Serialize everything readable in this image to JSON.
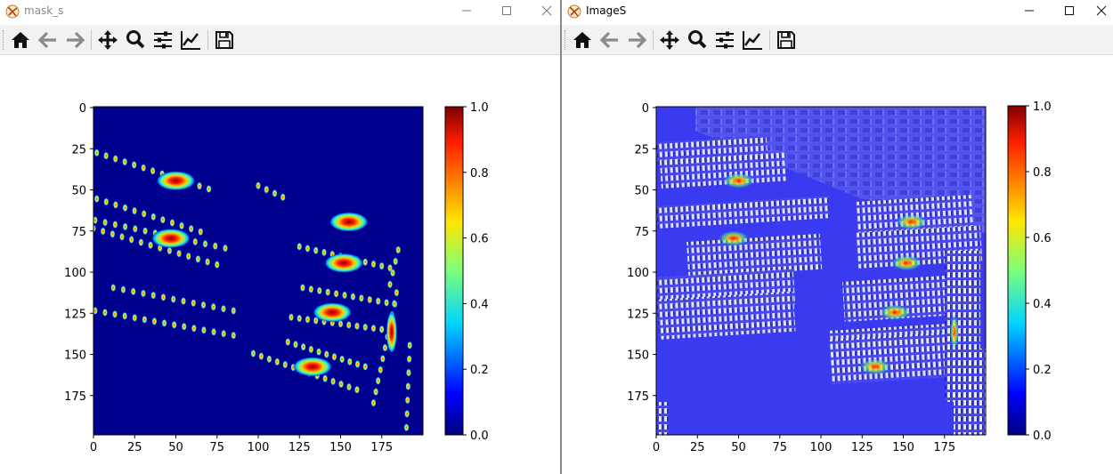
{
  "colors": {
    "titlebar_bg": "#ffffff",
    "toolbar_bg": "#f2f2f2",
    "divider": "#8a8a8a",
    "inactive_title": "#8a8a8a",
    "active_title": "#000000",
    "mask_background": "#00008f",
    "imagery_tint": "#3a3af0"
  },
  "windows": [
    {
      "title": "mask_s",
      "active": false,
      "controls": [
        "minimize",
        "maximize",
        "close"
      ],
      "toolbar": [
        "home-icon",
        "back-arrow-icon",
        "forward-arrow-icon",
        "pan-move-icon",
        "zoom-magnifier-icon",
        "configure-subplots-icon",
        "edit-axis-curve-icon",
        "save-floppy-icon"
      ],
      "x_ticks": [
        "0",
        "25",
        "50",
        "75",
        "100",
        "125",
        "150",
        "175"
      ],
      "y_ticks": [
        "0",
        "25",
        "50",
        "75",
        "100",
        "125",
        "150",
        "175"
      ],
      "colorbar_ticks": [
        "0.0",
        "0.2",
        "0.4",
        "0.6",
        "0.8",
        "1.0"
      ]
    },
    {
      "title": "ImageS",
      "active": true,
      "controls": [
        "minimize",
        "maximize",
        "close"
      ],
      "toolbar": [
        "home-icon",
        "back-arrow-icon",
        "forward-arrow-icon",
        "pan-move-icon",
        "zoom-magnifier-icon",
        "configure-subplots-icon",
        "edit-axis-curve-icon",
        "save-floppy-icon"
      ],
      "x_ticks": [
        "0",
        "25",
        "50",
        "75",
        "100",
        "125",
        "150",
        "175"
      ],
      "y_ticks": [
        "0",
        "25",
        "50",
        "75",
        "100",
        "125",
        "150",
        "175"
      ],
      "colorbar_ticks": [
        "0.0",
        "0.2",
        "0.4",
        "0.6",
        "0.8",
        "1.0"
      ]
    }
  ],
  "chart_data": [
    {
      "type": "heatmap",
      "colormap": "jet",
      "xlim": [
        0,
        199
      ],
      "ylim": [
        199,
        0
      ],
      "vmin": 0.0,
      "vmax": 1.0,
      "notes": "density mask: small car blobs along parking rows with a few bright red hotspots",
      "hotspots": [
        {
          "x": 50,
          "y": 45,
          "value": 1.0
        },
        {
          "x": 47,
          "y": 80,
          "value": 1.0
        },
        {
          "x": 155,
          "y": 70,
          "value": 0.95
        },
        {
          "x": 152,
          "y": 95,
          "value": 1.0
        },
        {
          "x": 145,
          "y": 125,
          "value": 1.0
        },
        {
          "x": 133,
          "y": 158,
          "value": 1.0
        },
        {
          "x": 181,
          "y": 137,
          "value": 0.95
        }
      ]
    },
    {
      "type": "heatmap",
      "colormap": "jet",
      "xlim": [
        0,
        199
      ],
      "ylim": [
        199,
        0
      ],
      "vmin": 0.0,
      "vmax": 1.0,
      "notes": "aerial parking-lot image overlaid with the density heatmap"
    }
  ]
}
